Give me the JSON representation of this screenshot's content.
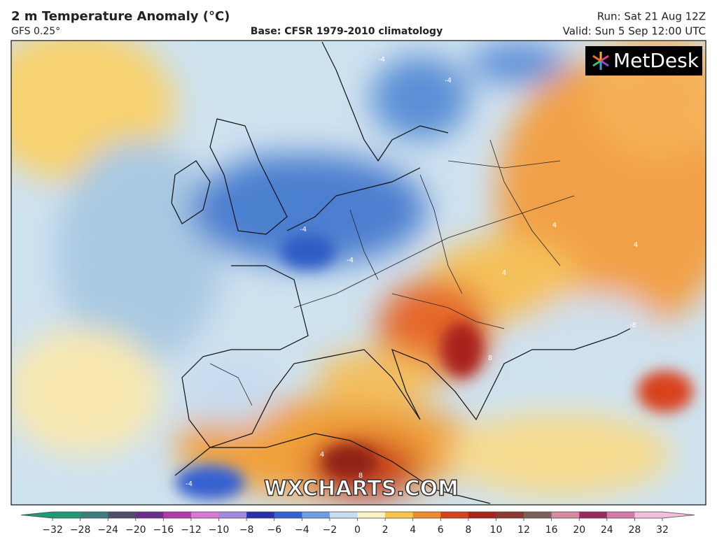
{
  "header": {
    "title": "2 m Temperature Anomaly (°C)",
    "model": "GFS 0.25°",
    "base": "Base: CFSR 1979-2010 climatology",
    "run": "Run: Sat 21 Aug 12Z",
    "valid": "Valid: Sun 5 Sep 12:00 UTC"
  },
  "map": {
    "logo": "MetDesk",
    "watermark": "WXCHARTS.COM",
    "contour_labels": [
      "-4",
      "-4",
      "-4",
      "-4",
      "4",
      "4",
      "4",
      "8",
      "8",
      "-8",
      "4",
      "-4"
    ]
  },
  "colorbar": {
    "ticks": [
      {
        "value": -32,
        "label": "−32"
      },
      {
        "value": -28,
        "label": "−28"
      },
      {
        "value": -24,
        "label": "−24"
      },
      {
        "value": -20,
        "label": "−20"
      },
      {
        "value": -16,
        "label": "−16"
      },
      {
        "value": -12,
        "label": "−12"
      },
      {
        "value": -10,
        "label": "−10"
      },
      {
        "value": -8,
        "label": "−8"
      },
      {
        "value": -6,
        "label": "−6"
      },
      {
        "value": -4,
        "label": "−4"
      },
      {
        "value": -2,
        "label": "−2"
      },
      0,
      2,
      4,
      6,
      8,
      10,
      12,
      16,
      20,
      24,
      28,
      32
    ],
    "colors": [
      "#1f9a73",
      "#3d7f7a",
      "#4f4f6a",
      "#6b2f8a",
      "#b43aa8",
      "#d57ad0",
      "#a08be0",
      "#2a2fb0",
      "#3560d0",
      "#6f9ee0",
      "#c7ddef",
      "#fbf3c6",
      "#f6c54a",
      "#ef8a2a",
      "#d8421a",
      "#a8241a",
      "#8a3a30",
      "#7d5f5a",
      "#d58aa0",
      "#9a2a60",
      "#d07aa8",
      "#f0c0d8"
    ]
  }
}
